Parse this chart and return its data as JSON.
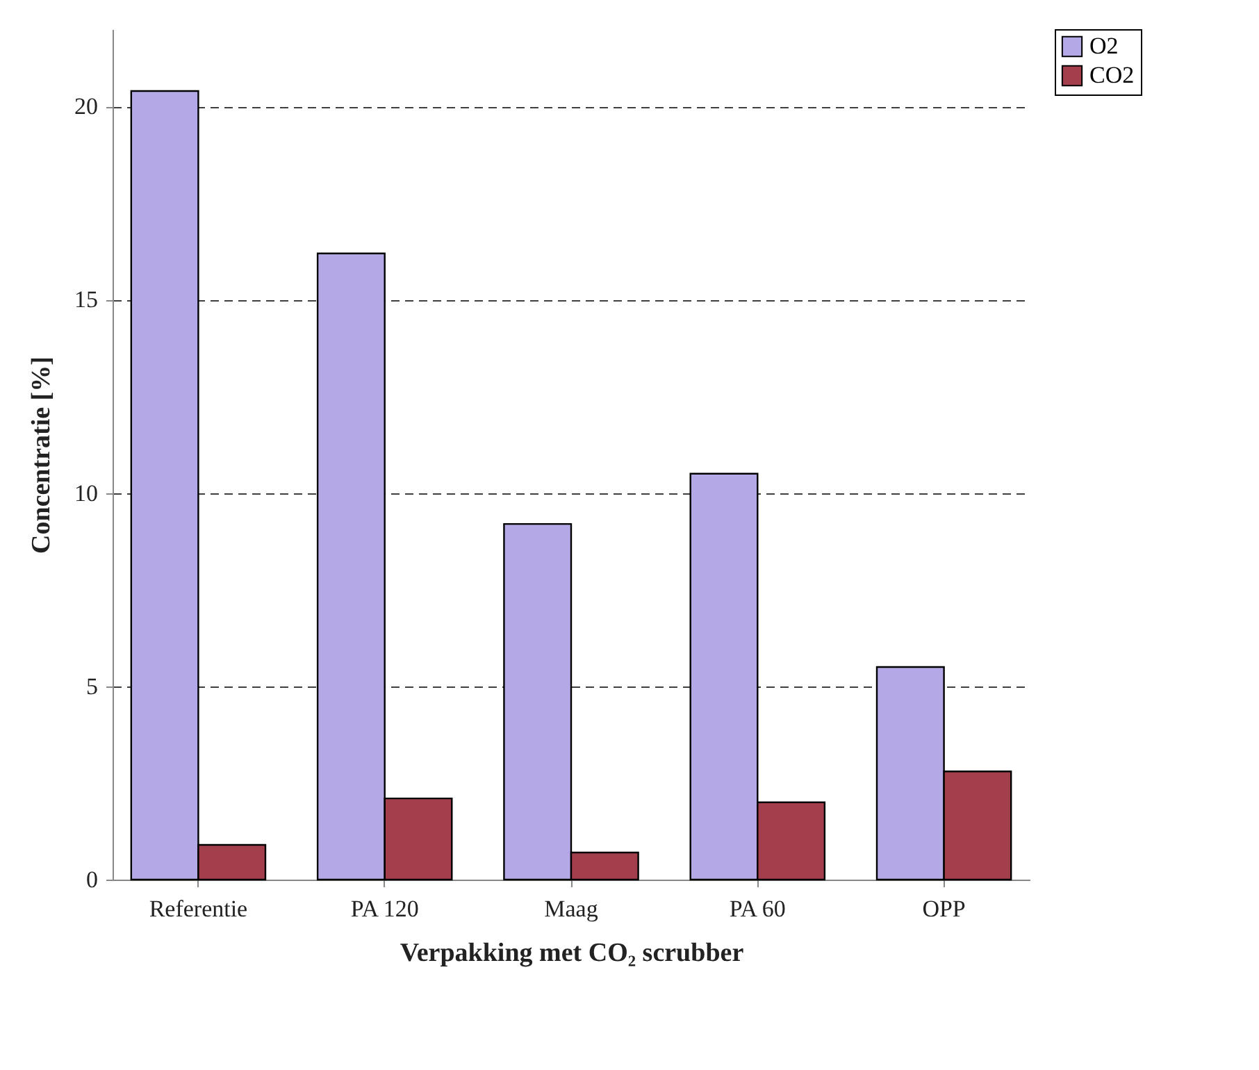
{
  "chart_data": {
    "type": "bar",
    "xlabel": "Verpakking met CO₂ scrubber",
    "ylabel": "Concentratie [%]",
    "categories": [
      "Referentie",
      "PA 120",
      "Maag",
      "PA 60",
      "OPP"
    ],
    "series": [
      {
        "name": "O2",
        "color": "#b4a8e6",
        "values": [
          20.4,
          16.2,
          9.2,
          10.5,
          5.5
        ]
      },
      {
        "name": "CO2",
        "color": "#a33f4c",
        "values": [
          0.9,
          2.1,
          0.7,
          2.0,
          2.8
        ]
      }
    ],
    "ylim": [
      0,
      22
    ],
    "yticks": [
      0,
      5,
      10,
      15,
      20
    ],
    "grid": "y",
    "legend": "right"
  }
}
